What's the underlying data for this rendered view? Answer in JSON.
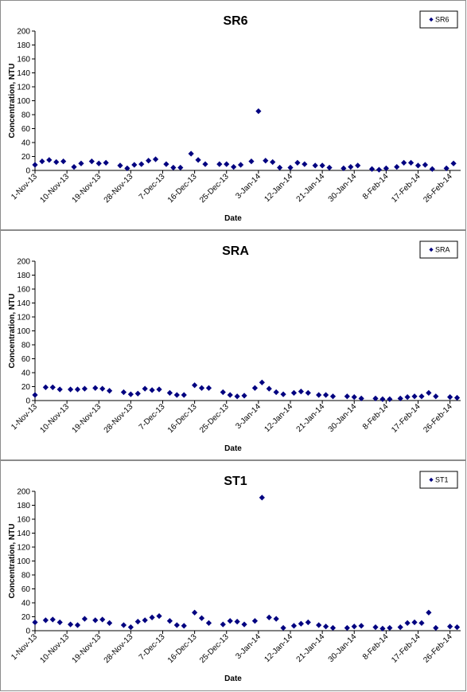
{
  "chart_data": [
    {
      "type": "scatter",
      "title": "SR6",
      "xlabel": "Date",
      "ylabel": "Concentration, NTU",
      "ylim": [
        0,
        200
      ],
      "yticks": [
        0,
        20,
        40,
        60,
        80,
        100,
        120,
        140,
        160,
        180,
        200
      ],
      "xlim": [
        "2013-11-01",
        "2014-03-01"
      ],
      "xticks": [
        "1-Nov-13",
        "10-Nov-13",
        "19-Nov-13",
        "28-Nov-13",
        "7-Dec-13",
        "16-Dec-13",
        "25-Dec-13",
        "3-Jan-14",
        "12-Jan-14",
        "21-Jan-14",
        "30-Jan-14",
        "8-Feb-14",
        "17-Feb-14",
        "26-Feb-14"
      ],
      "grid": false,
      "legend": "top-right",
      "color": "#000080",
      "series": [
        {
          "name": "SR6",
          "points": [
            [
              "2013-11-01",
              8
            ],
            [
              "2013-11-03",
              13
            ],
            [
              "2013-11-05",
              15
            ],
            [
              "2013-11-07",
              12
            ],
            [
              "2013-11-09",
              13
            ],
            [
              "2013-11-12",
              5
            ],
            [
              "2013-11-14",
              10
            ],
            [
              "2013-11-17",
              13
            ],
            [
              "2013-11-19",
              10
            ],
            [
              "2013-11-21",
              11
            ],
            [
              "2013-11-25",
              7
            ],
            [
              "2013-11-27",
              3
            ],
            [
              "2013-11-29",
              8
            ],
            [
              "2013-12-01",
              9
            ],
            [
              "2013-12-03",
              14
            ],
            [
              "2013-12-05",
              16
            ],
            [
              "2013-12-08",
              9
            ],
            [
              "2013-12-10",
              4
            ],
            [
              "2013-12-12",
              4
            ],
            [
              "2013-12-15",
              24
            ],
            [
              "2013-12-17",
              15
            ],
            [
              "2013-12-19",
              9
            ],
            [
              "2013-12-23",
              9
            ],
            [
              "2013-12-25",
              9
            ],
            [
              "2013-12-27",
              5
            ],
            [
              "2013-12-29",
              8
            ],
            [
              "2014-01-01",
              13
            ],
            [
              "2014-01-03",
              85
            ],
            [
              "2014-01-05",
              14
            ],
            [
              "2014-01-07",
              12
            ],
            [
              "2014-01-09",
              4
            ],
            [
              "2014-01-12",
              4
            ],
            [
              "2014-01-14",
              11
            ],
            [
              "2014-01-16",
              9
            ],
            [
              "2014-01-19",
              7
            ],
            [
              "2014-01-21",
              7
            ],
            [
              "2014-01-23",
              4
            ],
            [
              "2014-01-27",
              3
            ],
            [
              "2014-01-29",
              5
            ],
            [
              "2014-01-31",
              7
            ],
            [
              "2014-02-04",
              2
            ],
            [
              "2014-02-06",
              1
            ],
            [
              "2014-02-08",
              3
            ],
            [
              "2014-02-11",
              5
            ],
            [
              "2014-02-13",
              11
            ],
            [
              "2014-02-15",
              11
            ],
            [
              "2014-02-17",
              7
            ],
            [
              "2014-02-19",
              8
            ],
            [
              "2014-02-21",
              2
            ],
            [
              "2014-02-25",
              3
            ],
            [
              "2014-02-27",
              10
            ]
          ]
        }
      ]
    },
    {
      "type": "scatter",
      "title": "SRA",
      "xlabel": "Date",
      "ylabel": "Concentration, NTU",
      "ylim": [
        0,
        200
      ],
      "yticks": [
        0,
        20,
        40,
        60,
        80,
        100,
        120,
        140,
        160,
        180,
        200
      ],
      "xlim": [
        "2013-11-01",
        "2014-03-01"
      ],
      "xticks": [
        "1-Nov-13",
        "10-Nov-13",
        "19-Nov-13",
        "28-Nov-13",
        "7-Dec-13",
        "16-Dec-13",
        "25-Dec-13",
        "3-Jan-14",
        "12-Jan-14",
        "21-Jan-14",
        "30-Jan-14",
        "8-Feb-14",
        "17-Feb-14",
        "26-Feb-14"
      ],
      "grid": false,
      "legend": "top-right",
      "color": "#000080",
      "series": [
        {
          "name": "SRA",
          "points": [
            [
              "2013-11-01",
              8
            ],
            [
              "2013-11-04",
              19
            ],
            [
              "2013-11-06",
              19
            ],
            [
              "2013-11-08",
              16
            ],
            [
              "2013-11-11",
              16
            ],
            [
              "2013-11-13",
              16
            ],
            [
              "2013-11-15",
              17
            ],
            [
              "2013-11-18",
              18
            ],
            [
              "2013-11-20",
              17
            ],
            [
              "2013-11-22",
              14
            ],
            [
              "2013-11-26",
              12
            ],
            [
              "2013-11-28",
              9
            ],
            [
              "2013-11-30",
              10
            ],
            [
              "2013-12-02",
              17
            ],
            [
              "2013-12-04",
              15
            ],
            [
              "2013-12-06",
              16
            ],
            [
              "2013-12-09",
              11
            ],
            [
              "2013-12-11",
              8
            ],
            [
              "2013-12-13",
              8
            ],
            [
              "2013-12-16",
              22
            ],
            [
              "2013-12-18",
              18
            ],
            [
              "2013-12-20",
              18
            ],
            [
              "2013-12-24",
              12
            ],
            [
              "2013-12-26",
              8
            ],
            [
              "2013-12-28",
              6
            ],
            [
              "2013-12-30",
              7
            ],
            [
              "2014-01-02",
              18
            ],
            [
              "2014-01-04",
              26
            ],
            [
              "2014-01-06",
              17
            ],
            [
              "2014-01-08",
              12
            ],
            [
              "2014-01-10",
              9
            ],
            [
              "2014-01-13",
              11
            ],
            [
              "2014-01-15",
              13
            ],
            [
              "2014-01-17",
              11
            ],
            [
              "2014-01-20",
              8
            ],
            [
              "2014-01-22",
              8
            ],
            [
              "2014-01-24",
              6
            ],
            [
              "2014-01-28",
              6
            ],
            [
              "2014-01-30",
              5
            ],
            [
              "2014-02-01",
              3
            ],
            [
              "2014-02-05",
              3
            ],
            [
              "2014-02-07",
              2
            ],
            [
              "2014-02-09",
              2
            ],
            [
              "2014-02-12",
              3
            ],
            [
              "2014-02-14",
              5
            ],
            [
              "2014-02-16",
              6
            ],
            [
              "2014-02-18",
              6
            ],
            [
              "2014-02-20",
              11
            ],
            [
              "2014-02-22",
              6
            ],
            [
              "2014-02-26",
              5
            ],
            [
              "2014-02-28",
              4
            ]
          ]
        }
      ]
    },
    {
      "type": "scatter",
      "title": "ST1",
      "xlabel": "Date",
      "ylabel": "Concentration, NTU",
      "ylim": [
        0,
        200
      ],
      "yticks": [
        0,
        20,
        40,
        60,
        80,
        100,
        120,
        140,
        160,
        180,
        200
      ],
      "xlim": [
        "2013-11-01",
        "2014-03-01"
      ],
      "xticks": [
        "1-Nov-13",
        "10-Nov-13",
        "19-Nov-13",
        "28-Nov-13",
        "7-Dec-13",
        "16-Dec-13",
        "25-Dec-13",
        "3-Jan-14",
        "12-Jan-14",
        "21-Jan-14",
        "30-Jan-14",
        "8-Feb-14",
        "17-Feb-14",
        "26-Feb-14"
      ],
      "grid": false,
      "legend": "top-right",
      "color": "#000080",
      "series": [
        {
          "name": "ST1",
          "points": [
            [
              "2013-11-01",
              12
            ],
            [
              "2013-11-04",
              15
            ],
            [
              "2013-11-06",
              16
            ],
            [
              "2013-11-08",
              12
            ],
            [
              "2013-11-11",
              9
            ],
            [
              "2013-11-13",
              8
            ],
            [
              "2013-11-15",
              17
            ],
            [
              "2013-11-18",
              15
            ],
            [
              "2013-11-20",
              16
            ],
            [
              "2013-11-22",
              11
            ],
            [
              "2013-11-26",
              8
            ],
            [
              "2013-11-28",
              5
            ],
            [
              "2013-11-30",
              13
            ],
            [
              "2013-12-02",
              15
            ],
            [
              "2013-12-04",
              19
            ],
            [
              "2013-12-06",
              21
            ],
            [
              "2013-12-09",
              14
            ],
            [
              "2013-12-11",
              8
            ],
            [
              "2013-12-13",
              7
            ],
            [
              "2013-12-16",
              26
            ],
            [
              "2013-12-18",
              18
            ],
            [
              "2013-12-20",
              11
            ],
            [
              "2013-12-24",
              9
            ],
            [
              "2013-12-26",
              14
            ],
            [
              "2013-12-28",
              13
            ],
            [
              "2013-12-30",
              9
            ],
            [
              "2014-01-02",
              14
            ],
            [
              "2014-01-04",
              191
            ],
            [
              "2014-01-06",
              19
            ],
            [
              "2014-01-08",
              17
            ],
            [
              "2014-01-10",
              4
            ],
            [
              "2014-01-13",
              7
            ],
            [
              "2014-01-15",
              10
            ],
            [
              "2014-01-17",
              12
            ],
            [
              "2014-01-20",
              8
            ],
            [
              "2014-01-22",
              6
            ],
            [
              "2014-01-24",
              4
            ],
            [
              "2014-01-28",
              4
            ],
            [
              "2014-01-30",
              6
            ],
            [
              "2014-02-01",
              7
            ],
            [
              "2014-02-05",
              5
            ],
            [
              "2014-02-07",
              3
            ],
            [
              "2014-02-09",
              4
            ],
            [
              "2014-02-12",
              5
            ],
            [
              "2014-02-14",
              11
            ],
            [
              "2014-02-16",
              12
            ],
            [
              "2014-02-18",
              11
            ],
            [
              "2014-02-20",
              26
            ],
            [
              "2014-02-22",
              4
            ],
            [
              "2014-02-26",
              6
            ],
            [
              "2014-02-28",
              5
            ]
          ]
        }
      ]
    }
  ]
}
